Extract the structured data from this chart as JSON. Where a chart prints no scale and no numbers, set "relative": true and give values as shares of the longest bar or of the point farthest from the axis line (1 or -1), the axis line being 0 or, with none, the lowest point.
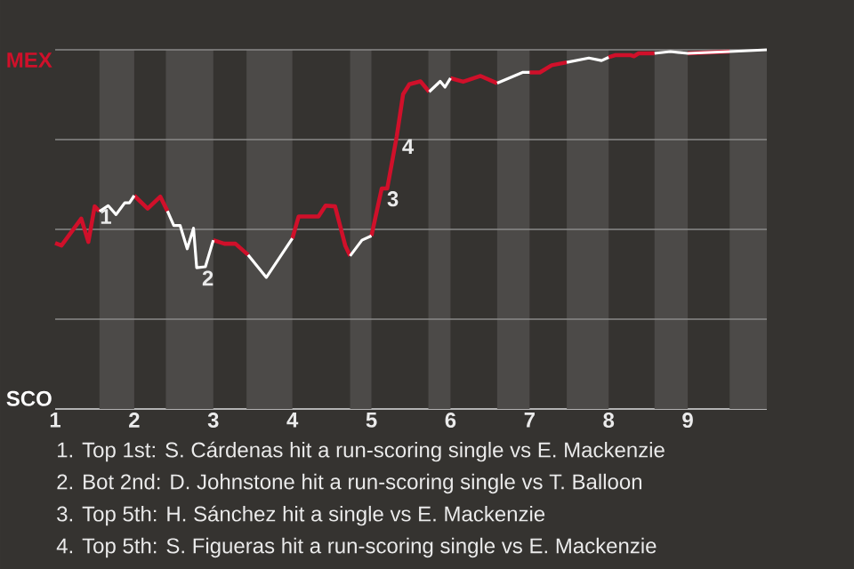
{
  "chart_data": {
    "type": "line",
    "relative": true,
    "x": [
      1.0,
      1.08,
      1.33,
      1.42,
      1.5,
      1.56,
      1.67,
      1.77,
      1.88,
      1.94,
      2.0,
      2.17,
      2.33,
      2.42,
      2.5,
      2.58,
      2.67,
      2.75,
      2.79,
      2.9,
      3.0,
      3.14,
      3.28,
      3.44,
      3.67,
      4.0,
      4.08,
      4.33,
      4.42,
      4.54,
      4.67,
      4.73,
      4.88,
      5.0,
      5.13,
      5.2,
      5.32,
      5.4,
      5.48,
      5.62,
      5.73,
      5.87,
      5.93,
      6.0,
      6.16,
      6.38,
      6.59,
      6.91,
      7.0,
      7.13,
      7.28,
      7.47,
      7.75,
      7.91,
      8.0,
      8.08,
      8.28,
      8.32,
      8.38,
      8.58,
      8.78,
      9.0,
      9.53,
      10.0
    ],
    "series": [
      {
        "name": "MEX",
        "color": "#d0102a",
        "values": [
          0.462,
          0.455,
          0.53,
          0.465,
          0.564,
          0.55,
          null,
          null,
          null,
          null,
          0.594,
          0.558,
          0.591,
          0.551,
          null,
          null,
          null,
          null,
          null,
          null,
          0.47,
          0.46,
          0.46,
          0.429,
          null,
          0.475,
          0.536,
          0.536,
          0.566,
          0.564,
          0.454,
          0.426,
          null,
          0.482,
          0.614,
          0.614,
          0.759,
          0.876,
          0.904,
          0.912,
          0.883,
          null,
          null,
          0.921,
          0.911,
          0.927,
          0.907,
          null,
          0.937,
          0.937,
          0.957,
          0.965,
          null,
          null,
          0.979,
          0.985,
          0.985,
          0.982,
          0.99,
          0.99,
          null,
          0.99,
          0.995,
          null
        ]
      },
      {
        "name": "SCO",
        "color": "#ffffff",
        "values": [
          null,
          null,
          null,
          null,
          null,
          0.55,
          0.566,
          0.541,
          0.574,
          0.574,
          0.594,
          null,
          null,
          0.551,
          0.511,
          0.511,
          0.446,
          0.503,
          0.393,
          0.396,
          0.47,
          null,
          null,
          0.429,
          0.366,
          0.475,
          null,
          null,
          null,
          null,
          null,
          0.426,
          0.47,
          0.482,
          null,
          null,
          null,
          null,
          null,
          null,
          0.883,
          0.912,
          0.896,
          0.921,
          null,
          null,
          0.907,
          0.937,
          0.937,
          null,
          null,
          0.965,
          0.977,
          0.97,
          0.979,
          null,
          null,
          null,
          null,
          0.99,
          0.995,
          0.99,
          0.995,
          1
        ]
      }
    ],
    "xlim": [
      1,
      10
    ],
    "xticks": [
      1,
      2,
      3,
      4,
      5,
      6,
      7,
      8,
      9
    ],
    "ref_lines": [
      {
        "axis": "y",
        "value": 0.25,
        "color": "#8a8a88"
      },
      {
        "axis": "y",
        "value": 0.5,
        "color": "#8a8a88"
      },
      {
        "axis": "y",
        "value": 0.75,
        "color": "#8a8a88"
      },
      {
        "axis": "y",
        "value": 1,
        "color": "#8a8a88"
      }
    ],
    "bands": [
      {
        "axis": "x",
        "from": 1.56,
        "to": 2,
        "color": "#4c4a48"
      },
      {
        "axis": "x",
        "from": 2.4,
        "to": 3,
        "color": "#4c4a48"
      },
      {
        "axis": "x",
        "from": 3.42,
        "to": 4,
        "color": "#4c4a48"
      },
      {
        "axis": "x",
        "from": 4.73,
        "to": 5,
        "color": "#4c4a48"
      },
      {
        "axis": "x",
        "from": 5.72,
        "to": 6,
        "color": "#4c4a48"
      },
      {
        "axis": "x",
        "from": 6.59,
        "to": 7,
        "color": "#4c4a48"
      },
      {
        "axis": "x",
        "from": 7.47,
        "to": 8,
        "color": "#4c4a48"
      },
      {
        "axis": "x",
        "from": 8.58,
        "to": 9,
        "color": "#4c4a48"
      },
      {
        "axis": "x",
        "from": 9.53,
        "to": 10,
        "color": "#4c4a48"
      }
    ],
    "annotations": [
      {
        "text": "1",
        "x": 1.5,
        "y": 0.564
      },
      {
        "text": "2",
        "x": 2.79,
        "y": 0.393
      },
      {
        "text": "3",
        "x": 5.13,
        "y": 0.614
      },
      {
        "text": "4",
        "x": 5.32,
        "y": 0.759
      },
      "1. Top 1st: S. Cárdenas hit a run-scoring single vs E. Mackenzie",
      "2. Bot 2nd: D. Johnstone hit a run-scoring single vs T. Balloon",
      "3. Top 5th: H. Sánchez hit a single vs E. Mackenzie",
      "4. Top 5th: S. Figueras hit a run-scoring single vs E. Mackenzie"
    ]
  }
}
